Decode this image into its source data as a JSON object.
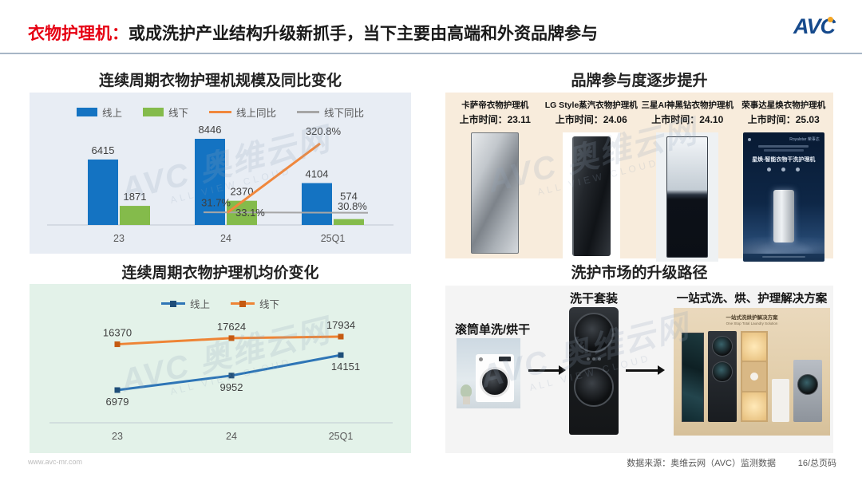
{
  "header": {
    "title_highlight": "衣物护理机：",
    "title_rest": "或成洗护产业结构升级新抓手，当下主要由高端和外资品牌参与",
    "logo_text": "AVC"
  },
  "watermark": {
    "line1": "AVC 奥维云网",
    "line2": "ALL VIEW CLOUD"
  },
  "chart_data": [
    {
      "type": "bar",
      "title": "连续周期衣物护理机规模及同比变化",
      "categories": [
        "23",
        "24",
        "25Q1"
      ],
      "panel_bg": "#e8edf4",
      "legend_position": "top",
      "series": [
        {
          "name": "线上",
          "kind": "bar",
          "color": "#1473c2",
          "values": [
            6415,
            8446,
            4104
          ]
        },
        {
          "name": "线下",
          "kind": "bar",
          "color": "#84bb4b",
          "values": [
            1871,
            2370,
            574
          ]
        },
        {
          "name": "线上同比",
          "kind": "line",
          "color": "#f0873c",
          "values": [
            null,
            31.7,
            320.8
          ],
          "labels": [
            null,
            "31.7%",
            "320.8%"
          ]
        },
        {
          "name": "线下同比",
          "kind": "line",
          "color": "#a6a6a6",
          "values": [
            null,
            33.1,
            30.8
          ],
          "labels": [
            null,
            "33.1%",
            "30.8%"
          ]
        }
      ]
    },
    {
      "type": "line",
      "title": "连续周期衣物护理机均价变化",
      "categories": [
        "23",
        "24",
        "25Q1"
      ],
      "panel_bg": "#e3f2e9",
      "legend_position": "top",
      "series": [
        {
          "name": "线上",
          "color": "#2e75b6",
          "marker": "#1f4e79",
          "label_pos": "below",
          "values": [
            6979,
            9952,
            14151
          ]
        },
        {
          "name": "线下",
          "color": "#ee8435",
          "marker": "#c55a11",
          "label_pos": "above",
          "values": [
            16370,
            17624,
            17934
          ]
        }
      ]
    }
  ],
  "brands": {
    "title": "品牌参与度逐步提升",
    "panel_bg": "#f8ecdc",
    "products": [
      {
        "name": "卡萨帝衣物护理机",
        "launch": "上市时间：23.11"
      },
      {
        "name": "LG Style蒸汽衣物护理机",
        "launch": "上市时间：24.06"
      },
      {
        "name": "三星AI神黑钻衣物护理机",
        "launch": "上市时间：24.10"
      },
      {
        "name": "荣事达星焕衣物护理机",
        "launch": "上市时间：25.03",
        "poster_brand": "Royalstar 荣事达",
        "poster_title": "星焕-智能衣物干洗护理机"
      }
    ]
  },
  "upgrade": {
    "title": "洗护市场的升级路径",
    "panel_bg": "#f4f4f4",
    "stages": [
      {
        "label": "滚筒单洗/烘干"
      },
      {
        "label": "洗干套装"
      },
      {
        "label": "一站式洗、烘、护理解决方案",
        "caption_cn": "一站式洗烘护解决方案",
        "caption_en": "One Stop Total Laundry Solution"
      }
    ]
  },
  "footer": {
    "site": "www.avc-mr.com",
    "source": "数据来源：奥维云网（AVC）监测数据",
    "page": "16/总页码"
  }
}
